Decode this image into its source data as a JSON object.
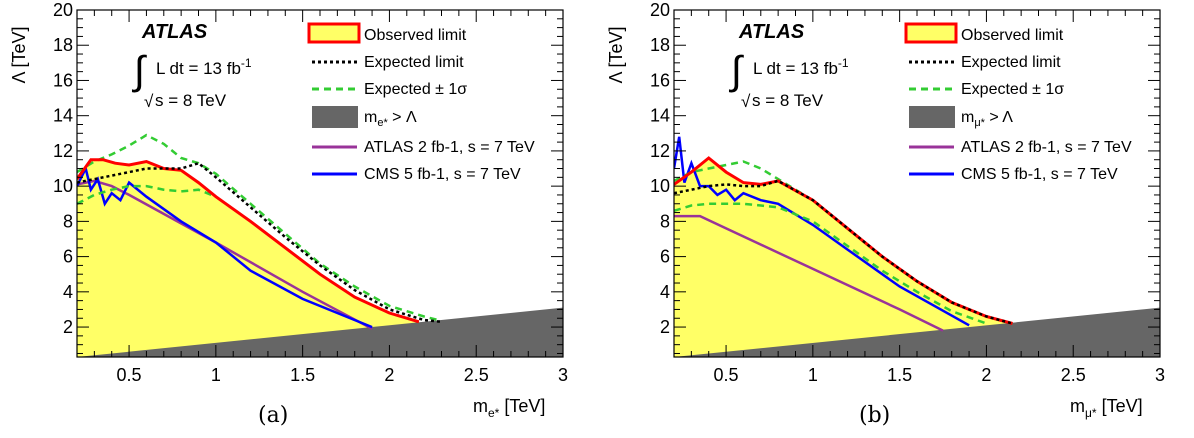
{
  "chart_data": [
    {
      "type": "line",
      "panel_label": "(a)",
      "xlabel": "m",
      "xlabel_sub": "e*",
      "xlabel_unit": "[TeV]",
      "ylabel": "Λ [TeV]",
      "xlim": [
        0.2,
        3.0
      ],
      "ylim": [
        0.3,
        20.0
      ],
      "x_ticks": [
        0.5,
        1,
        1.5,
        2,
        2.5,
        3
      ],
      "x_tick_labels": [
        "0.5",
        "1",
        "1.5",
        "2",
        "2.5",
        "3"
      ],
      "y_ticks": [
        2,
        4,
        6,
        8,
        10,
        12,
        14,
        16,
        18,
        20
      ],
      "y_tick_labels": [
        "2",
        "4",
        "6",
        "8",
        "10",
        "12",
        "14",
        "16",
        "18",
        "20"
      ],
      "experiment_label": "ATLAS",
      "lumi_prefix": "L dt = 13 fb",
      "lumi_sup": "-1",
      "energy": "s = 8 TeV",
      "legend": {
        "placement": "top-right",
        "observed": "Observed limit",
        "expected": "Expected limit",
        "band": "Expected ± 1σ",
        "excluded_prefix": "m",
        "excluded_sub": "e*",
        "excluded_suffix": " > Λ",
        "atlas7": "ATLAS 2 fb-1, s = 7 TeV",
        "cms7": "CMS 5 fb-1, s = 7 TeV"
      },
      "colors": {
        "observed": "#ff0000",
        "band_fill": "#ffff66",
        "expected": "#000000",
        "band_edge": "#33cc33",
        "excluded": "#666666",
        "atlas7": "#993399",
        "cms7": "#0000ff"
      },
      "series": [
        {
          "name": "Observed limit",
          "x": [
            0.2,
            0.28,
            0.35,
            0.42,
            0.5,
            0.6,
            0.7,
            0.8,
            0.9,
            1.0,
            1.2,
            1.4,
            1.6,
            1.8,
            2.0,
            2.17
          ],
          "y": [
            10.4,
            11.5,
            11.5,
            11.3,
            11.2,
            11.4,
            11.0,
            10.9,
            10.2,
            9.4,
            8.0,
            6.5,
            5.0,
            3.7,
            2.8,
            2.3
          ]
        },
        {
          "name": "Expected limit",
          "x": [
            0.2,
            0.3,
            0.4,
            0.5,
            0.6,
            0.7,
            0.8,
            0.9,
            1.0,
            1.2,
            1.4,
            1.6,
            1.8,
            2.0,
            2.2,
            2.3
          ],
          "y": [
            10.2,
            10.4,
            10.6,
            10.8,
            11.0,
            11.0,
            11.0,
            11.3,
            10.5,
            8.8,
            7.1,
            5.5,
            4.1,
            3.0,
            2.4,
            2.3
          ]
        },
        {
          "name": "Expected +1σ",
          "x": [
            0.2,
            0.3,
            0.4,
            0.5,
            0.6,
            0.7,
            0.8,
            0.9,
            1.0,
            1.2,
            1.4,
            1.6,
            1.8,
            2.0,
            2.2,
            2.28
          ],
          "y": [
            10.8,
            11.4,
            11.8,
            12.3,
            12.9,
            12.4,
            11.6,
            11.3,
            10.7,
            9.0,
            7.3,
            5.6,
            4.3,
            3.2,
            2.6,
            2.4
          ]
        },
        {
          "name": "Expected -1σ",
          "x": [
            0.2,
            0.3,
            0.4,
            0.5,
            0.6,
            0.7,
            0.8,
            0.9,
            1.0,
            1.2,
            1.4,
            1.6,
            1.8,
            2.0,
            2.17
          ],
          "y": [
            9.0,
            9.5,
            9.8,
            10.0,
            10.0,
            9.8,
            9.7,
            9.8,
            9.4,
            8.0,
            6.5,
            5.0,
            3.7,
            2.8,
            2.3
          ]
        },
        {
          "name": "ATLAS 2 fb-1, s = 7 TeV",
          "x": [
            0.2,
            0.3,
            0.4,
            0.5,
            1.0,
            1.5,
            1.9
          ],
          "y": [
            10.1,
            10.3,
            10.0,
            9.5,
            6.8,
            4.0,
            1.9
          ]
        },
        {
          "name": "CMS 5 fb-1, s = 7 TeV",
          "x": [
            0.2,
            0.25,
            0.28,
            0.32,
            0.36,
            0.4,
            0.45,
            0.5,
            0.6,
            0.8,
            1.0,
            1.2,
            1.5,
            1.9
          ],
          "y": [
            10.0,
            11.0,
            9.8,
            10.4,
            9.0,
            9.6,
            9.2,
            10.2,
            9.4,
            8.0,
            6.8,
            5.2,
            3.6,
            2.0
          ]
        }
      ],
      "excluded_region": {
        "x": [
          0.2,
          3.0
        ],
        "y": [
          0.3,
          3.1
        ]
      }
    },
    {
      "type": "line",
      "panel_label": "(b)",
      "xlabel": "m",
      "xlabel_sub": "μ*",
      "xlabel_unit": "[TeV]",
      "ylabel": "Λ [TeV]",
      "xlim": [
        0.2,
        3.0
      ],
      "ylim": [
        0.3,
        20.0
      ],
      "x_ticks": [
        0.5,
        1,
        1.5,
        2,
        2.5,
        3
      ],
      "x_tick_labels": [
        "0.5",
        "1",
        "1.5",
        "2",
        "2.5",
        "3"
      ],
      "y_ticks": [
        2,
        4,
        6,
        8,
        10,
        12,
        14,
        16,
        18,
        20
      ],
      "y_tick_labels": [
        "2",
        "4",
        "6",
        "8",
        "10",
        "12",
        "14",
        "16",
        "18",
        "20"
      ],
      "experiment_label": "ATLAS",
      "lumi_prefix": "L dt = 13 fb",
      "lumi_sup": "-1",
      "energy": "s = 8 TeV",
      "legend": {
        "placement": "top-right",
        "observed": "Observed limit",
        "expected": "Expected limit",
        "band": "Expected ± 1σ",
        "excluded_prefix": "m",
        "excluded_sub": "μ*",
        "excluded_suffix": " > Λ",
        "atlas7": "ATLAS 2 fb-1, s = 7 TeV",
        "cms7": "CMS 5 fb-1, s = 7 TeV"
      },
      "colors": {
        "observed": "#ff0000",
        "band_fill": "#ffff66",
        "expected": "#000000",
        "band_edge": "#33cc33",
        "excluded": "#666666",
        "atlas7": "#993399",
        "cms7": "#0000ff"
      },
      "series": [
        {
          "name": "Observed limit",
          "x": [
            0.2,
            0.3,
            0.4,
            0.5,
            0.6,
            0.7,
            0.8,
            1.0,
            1.2,
            1.4,
            1.6,
            1.8,
            2.0,
            2.15
          ],
          "y": [
            10.1,
            10.8,
            11.6,
            10.8,
            10.2,
            10.1,
            10.3,
            9.2,
            7.6,
            6.0,
            4.6,
            3.4,
            2.6,
            2.2
          ]
        },
        {
          "name": "Expected limit",
          "x": [
            0.2,
            0.3,
            0.4,
            0.5,
            0.6,
            0.7,
            0.8,
            1.0,
            1.2,
            1.4,
            1.6,
            1.8,
            2.0,
            2.15
          ],
          "y": [
            9.6,
            9.8,
            10.0,
            10.1,
            10.0,
            10.0,
            10.3,
            9.2,
            7.6,
            6.0,
            4.6,
            3.4,
            2.6,
            2.2
          ]
        },
        {
          "name": "Expected +1σ",
          "x": [
            0.2,
            0.3,
            0.4,
            0.5,
            0.6,
            0.7,
            0.8,
            1.0,
            1.2,
            1.4,
            1.6,
            1.8,
            2.0,
            2.15
          ],
          "y": [
            10.3,
            10.8,
            11.0,
            11.2,
            11.4,
            11.0,
            10.4,
            9.2,
            7.6,
            6.0,
            4.6,
            3.4,
            2.6,
            2.2
          ]
        },
        {
          "name": "Expected -1σ",
          "x": [
            0.2,
            0.3,
            0.4,
            0.5,
            0.6,
            0.7,
            0.8,
            1.0,
            1.2,
            1.4,
            1.6,
            1.8,
            2.0
          ],
          "y": [
            8.6,
            8.9,
            9.0,
            9.0,
            9.0,
            8.9,
            8.8,
            8.0,
            6.6,
            5.2,
            4.0,
            2.9,
            2.2
          ]
        },
        {
          "name": "ATLAS 2 fb-1, s = 7 TeV",
          "x": [
            0.2,
            0.35,
            0.5,
            1.0,
            1.5,
            1.75
          ],
          "y": [
            8.3,
            8.3,
            7.6,
            5.3,
            3.0,
            1.8
          ]
        },
        {
          "name": "CMS 5 fb-1, s = 7 TeV",
          "x": [
            0.2,
            0.23,
            0.26,
            0.3,
            0.35,
            0.4,
            0.45,
            0.5,
            0.55,
            0.6,
            0.7,
            0.8,
            1.0,
            1.2,
            1.5,
            1.9
          ],
          "y": [
            11.0,
            12.8,
            10.2,
            11.3,
            10.0,
            10.0,
            9.5,
            9.8,
            9.2,
            9.6,
            9.2,
            9.0,
            7.8,
            6.4,
            4.3,
            2.1
          ]
        }
      ],
      "excluded_region": {
        "x": [
          0.2,
          3.0
        ],
        "y": [
          0.3,
          3.1
        ]
      }
    }
  ]
}
